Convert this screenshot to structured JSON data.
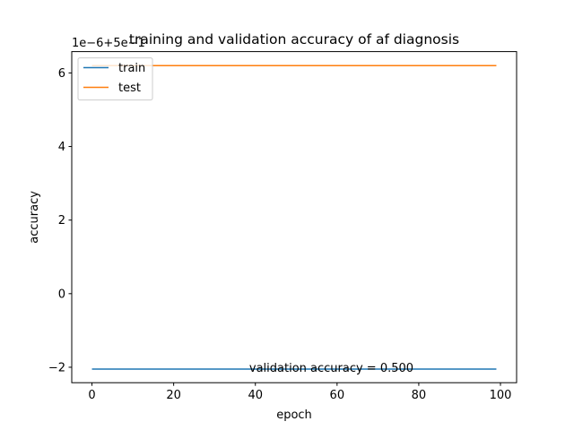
{
  "chart_data": {
    "type": "line",
    "title": "training and validation accuracy of af diagnosis",
    "xlabel": "epoch",
    "ylabel": "accuracy",
    "offset_text": "1e−6+5e−1",
    "xlim": [
      -4.95,
      103.95
    ],
    "ylim": [
      -2.42,
      6.58
    ],
    "xticks": [
      0,
      20,
      40,
      60,
      80,
      100
    ],
    "xtick_labels": [
      "0",
      "20",
      "40",
      "60",
      "80",
      "100"
    ],
    "yticks": [
      -2,
      0,
      2,
      4,
      6
    ],
    "ytick_labels": [
      "−2",
      "0",
      "2",
      "4",
      "6"
    ],
    "x_start": 0,
    "x_end": 99,
    "series": [
      {
        "name": "train",
        "color": "#1f77b4",
        "y_start": -2.05,
        "y_end": -2.05
      },
      {
        "name": "test",
        "color": "#ff7f0e",
        "y_start": 6.2,
        "y_end": 6.2
      }
    ],
    "annotation": {
      "text": "validation accuracy = 0.500",
      "x": 38.5,
      "y": -2.05
    },
    "legend": {
      "placement": "upper-left"
    },
    "grid": false
  }
}
